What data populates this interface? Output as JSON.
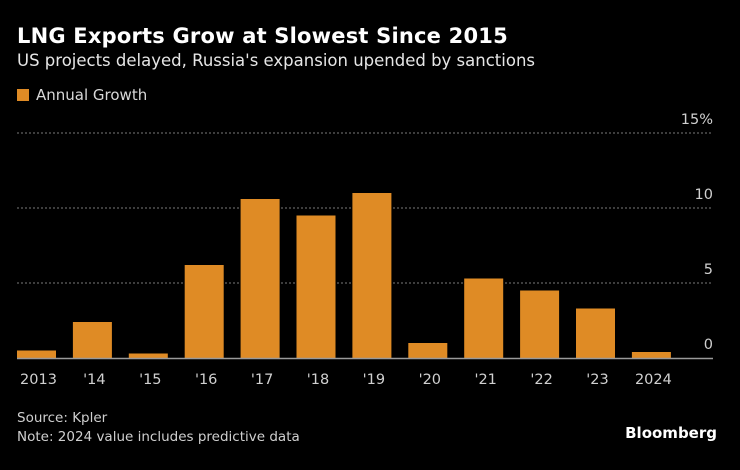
{
  "header": {
    "title": "LNG Exports Grow at Slowest Since 2015",
    "subtitle": "US projects delayed, Russia's expansion upended by sanctions"
  },
  "legend": {
    "label": "Annual Growth",
    "color": "#df8b25"
  },
  "footer": {
    "source": "Source: Kpler",
    "note": "Note: 2024 value includes predictive data",
    "brand": "Bloomberg"
  },
  "chart_data": {
    "type": "bar",
    "title": "LNG Exports Grow at Slowest Since 2015",
    "subtitle": "US projects delayed, Russia's expansion upended by sanctions",
    "xlabel": "",
    "ylabel": "",
    "categories": [
      "2013",
      "'14",
      "'15",
      "'16",
      "'17",
      "'18",
      "'19",
      "'20",
      "'21",
      "'22",
      "'23",
      "2024"
    ],
    "series": [
      {
        "name": "Annual Growth",
        "color": "#df8b25",
        "values": [
          0.5,
          2.4,
          0.3,
          6.2,
          10.6,
          9.5,
          11.0,
          1.0,
          5.3,
          4.5,
          3.3,
          0.4
        ]
      }
    ],
    "ylim": [
      0,
      15
    ],
    "yticks": [
      0,
      5,
      10,
      15
    ],
    "ytick_labels": [
      "0",
      "5",
      "10",
      "15%"
    ],
    "grid": true,
    "legend_position": "top-left",
    "y_axis_side": "right"
  }
}
